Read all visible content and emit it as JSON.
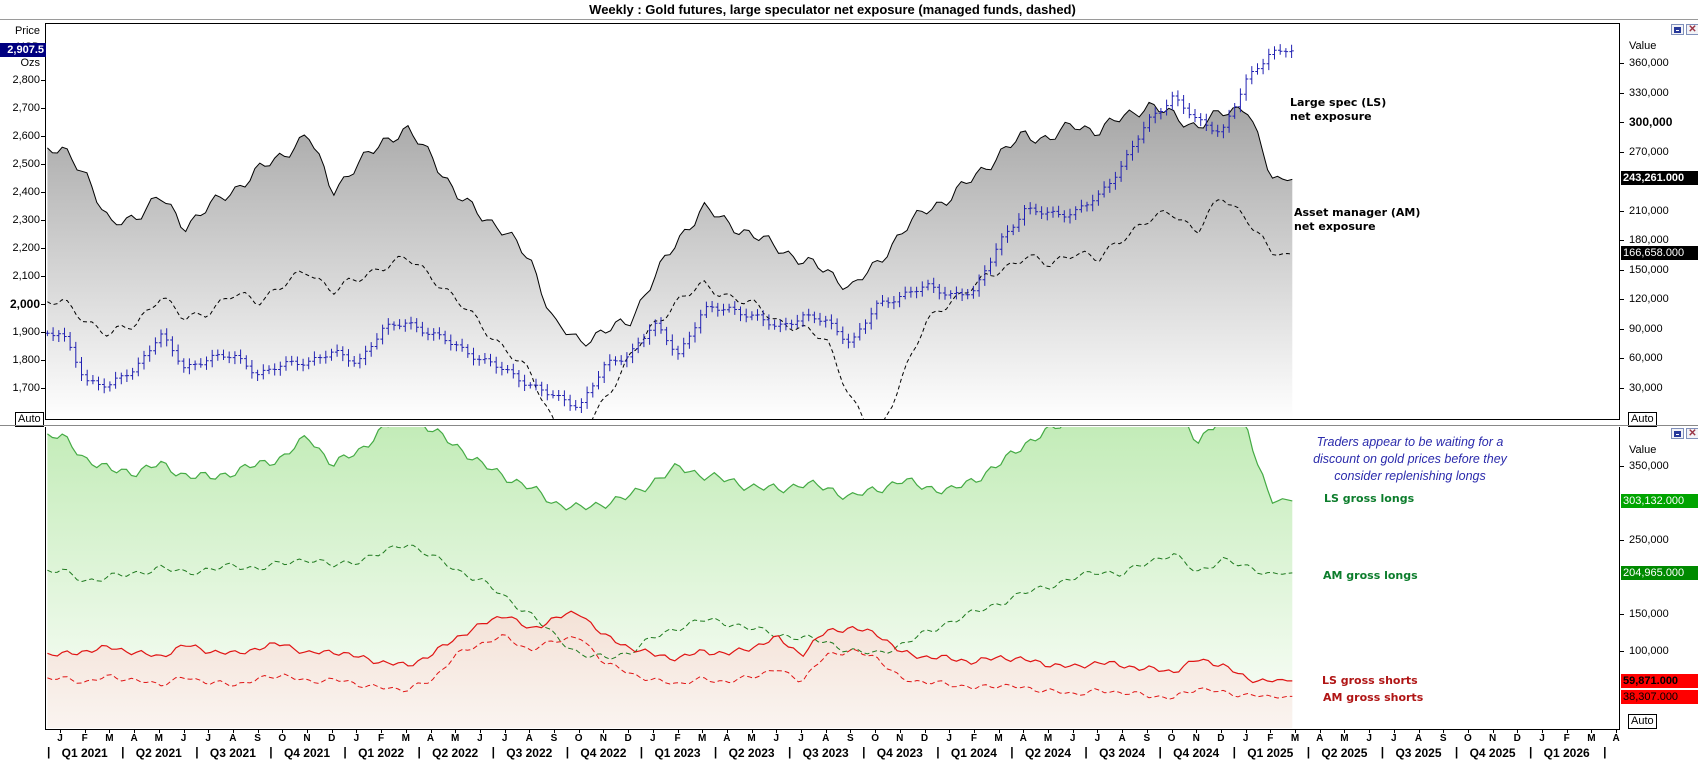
{
  "window": {
    "title": "Weekly : Gold futures, large speculator net exposure (managed funds, dashed)"
  },
  "top_panel": {
    "price_axis": {
      "header_lines": [
        "Price",
        "USD",
        "Ozs"
      ],
      "current_price_badge": "2,907.5",
      "ticks": [
        "2,800",
        "2,700",
        "2,600",
        "2,500",
        "2,400",
        "2,300",
        "2,200",
        "2,100",
        "2,000",
        "1,900",
        "1,800",
        "1,700"
      ],
      "bold_tick": "2,000",
      "auto_label": "Auto"
    },
    "value_axis": {
      "header": "Value",
      "ticks": [
        "360,000",
        "330,000",
        "300,000",
        "270,000",
        "210,000",
        "180,000",
        "150,000",
        "120,000",
        "90,000",
        "60,000",
        "30,000"
      ],
      "bold_tick": "300,000",
      "badges": [
        {
          "text": "243,261.000",
          "bg": "#000000",
          "fg": "#ffffff",
          "bold": true
        },
        {
          "text": "166,658.000",
          "bg": "#000000",
          "fg": "#ffffff",
          "bold": false
        }
      ],
      "auto_label": "Auto"
    },
    "annotations": [
      {
        "line1": "Large spec (LS)",
        "line2": "net exposure"
      },
      {
        "line1": "Asset manager (AM)",
        "line2": "net exposure"
      }
    ]
  },
  "bottom_panel": {
    "value_axis": {
      "header": "Value",
      "ticks": [
        "350,000",
        "250,000",
        "150,000",
        "100,000"
      ],
      "badges": [
        {
          "text": "303,132.000",
          "bg": "#00a400",
          "fg": "#ffffff",
          "bold": false
        },
        {
          "text": "204,965.000",
          "bg": "#008a00",
          "fg": "#ffffff",
          "bold": false
        },
        {
          "text": "59,871.000",
          "bg": "#ff0000",
          "fg": "#000000",
          "bold": true
        },
        {
          "text": "38,307.000",
          "bg": "#ff0000",
          "fg": "#000000",
          "bold": false
        }
      ],
      "auto_label": "Auto"
    },
    "annotations": {
      "blue_note_lines": [
        "Traders appear to be waiting for a",
        "discount on gold prices before they",
        "consider replenishing longs"
      ],
      "ls_longs_label": "LS gross longs",
      "am_longs_label": "AM gross longs",
      "ls_shorts_label": "LS gross shorts",
      "am_shorts_label": "AM gross shorts"
    }
  },
  "x_axis": {
    "month_letters": [
      "J",
      "F",
      "M",
      "A",
      "M",
      "J",
      "J",
      "A",
      "S",
      "O",
      "N",
      "D",
      "J",
      "F",
      "M",
      "A",
      "M",
      "J",
      "J",
      "A",
      "S",
      "O",
      "N",
      "D",
      "J",
      "F",
      "M",
      "A",
      "M",
      "J",
      "J",
      "A",
      "S",
      "O",
      "N",
      "D",
      "J",
      "F",
      "M",
      "A",
      "M",
      "J",
      "J",
      "A",
      "S",
      "O",
      "N",
      "D",
      "J",
      "F",
      "M",
      "A",
      "M",
      "J",
      "J",
      "A",
      "S",
      "O",
      "N",
      "D",
      "J",
      "F",
      "M",
      "A"
    ],
    "quarters": [
      "Q1 2021",
      "Q2 2021",
      "Q3 2021",
      "Q4 2021",
      "Q1 2022",
      "Q2 2022",
      "Q3 2022",
      "Q4 2022",
      "Q1 2023",
      "Q2 2023",
      "Q3 2023",
      "Q4 2023",
      "Q1 2024",
      "Q2 2024",
      "Q3 2024",
      "Q4 2024",
      "Q1 2025",
      "Q2 2025",
      "Q3 2025",
      "Q4 2025",
      "Q1 2026"
    ]
  },
  "chart_data": {
    "type": "mixed",
    "x": {
      "start": "Jan 2021",
      "data_end": "Feb 2025",
      "axis_end": "Apr 2026",
      "resolution": "weekly",
      "monthly_sampling": true
    },
    "panels": [
      {
        "name": "gold_price_and_net_exposure",
        "left_axis": {
          "label": "Price USD Ozs",
          "ticks": [
            2800,
            2700,
            2600,
            2500,
            2400,
            2300,
            2200,
            2100,
            2000,
            1900,
            1800,
            1700
          ],
          "last_price": 2907.5
        },
        "right_axis": {
          "label": "Value",
          "ticks": [
            360000,
            330000,
            300000,
            270000,
            210000,
            180000,
            150000,
            120000,
            90000,
            60000,
            30000
          ]
        },
        "series": [
          {
            "name": "Gold futures weekly price",
            "type": "ohlc",
            "color": "#2222b2",
            "unit": "USD/oz",
            "monthly_values": [
              1900,
              1730,
              1715,
              1770,
              1900,
              1770,
              1815,
              1815,
              1755,
              1785,
              1800,
              1830,
              1795,
              1910,
              1940,
              1895,
              1855,
              1805,
              1765,
              1715,
              1670,
              1640,
              1780,
              1825,
              1930,
              1825,
              1980,
              1990,
              1960,
              1920,
              1960,
              1940,
              1865,
              1995,
              2035,
              2065,
              2040,
              2045,
              2230,
              2335,
              2330,
              2325,
              2390,
              2505,
              2655,
              2745,
              2655,
              2620,
              2800,
              2907.5
            ],
            "last_value": 2907.5
          },
          {
            "name": "Large spec (LS) net exposure",
            "type": "area",
            "style": "solid",
            "color": "#000000",
            "fill": "gray-gradient",
            "unit": "contracts (thousands)",
            "monthly_values": [
              272,
              250,
              195,
              205,
              225,
              195,
              215,
              232,
              252,
              268,
              288,
              232,
              256,
              282,
              292,
              268,
              226,
              208,
              188,
              162,
              95,
              78,
              88,
              98,
              142,
              182,
              214,
              198,
              186,
              174,
              160,
              150,
              132,
              156,
              188,
              212,
              224,
              246,
              268,
              288,
              284,
              298,
              292,
              306,
              318,
              308,
              296,
              310,
              318,
              243.261
            ],
            "last_value": 243261
          },
          {
            "name": "Asset manager (AM) net exposure",
            "type": "line",
            "style": "dashed",
            "color": "#000000",
            "unit": "contracts (thousands)",
            "monthly_values": [
              118,
              100,
              85,
              95,
              125,
              100,
              110,
              125,
              120,
              135,
              150,
              130,
              140,
              155,
              162,
              145,
              120,
              95,
              70,
              45,
              -5,
              -20,
              20,
              60,
              95,
              120,
              135,
              125,
              115,
              100,
              90,
              80,
              20,
              -25,
              40,
              95,
              120,
              135,
              150,
              165,
              155,
              170,
              160,
              185,
              200,
              210,
              190,
              225,
              205,
              166.658
            ],
            "last_value": 166658
          }
        ]
      },
      {
        "name": "gross_positions",
        "right_axis": {
          "label": "Value",
          "ticks": [
            350000,
            250000,
            150000,
            100000
          ]
        },
        "series": [
          {
            "name": "LS gross longs",
            "type": "area",
            "style": "solid",
            "color": "#44aa44",
            "fill": "green-gradient",
            "unit": "contracts (thousands)",
            "monthly_values": [
              390,
              360,
              344,
              342,
              352,
              338,
              334,
              342,
              352,
              362,
              390,
              352,
              368,
              400,
              420,
              398,
              378,
              352,
              336,
              320,
              300,
              292,
              300,
              308,
              330,
              348,
              338,
              330,
              322,
              318,
              326,
              320,
              308,
              318,
              330,
              322,
              316,
              332,
              352,
              380,
              398,
              412,
              430,
              418,
              436,
              428,
              380,
              420,
              400,
              303.132
            ],
            "last_value": 303132
          },
          {
            "name": "AM gross longs",
            "type": "line",
            "style": "dashed",
            "color": "#1f7a1f",
            "unit": "contracts (thousands)",
            "monthly_values": [
              208,
              195,
              200,
              205,
              212,
              206,
              210,
              215,
              212,
              218,
              225,
              215,
              222,
              232,
              246,
              228,
              210,
              195,
              172,
              150,
              120,
              96,
              90,
              98,
              118,
              132,
              142,
              138,
              130,
              122,
              118,
              112,
              100,
              96,
              108,
              124,
              140,
              152,
              165,
              178,
              188,
              198,
              208,
              204,
              220,
              232,
              205,
              225,
              212,
              204.965
            ],
            "last_value": 204965
          },
          {
            "name": "LS gross shorts",
            "type": "area",
            "style": "solid",
            "color": "#e01414",
            "fill": "red-gradient",
            "unit": "contracts (thousands)",
            "monthly_values": [
              95,
              100,
              105,
              98,
              92,
              108,
              100,
              96,
              104,
              110,
              96,
              100,
              92,
              85,
              80,
              95,
              118,
              135,
              150,
              128,
              145,
              152,
              120,
              105,
              95,
              90,
              100,
              96,
              105,
              118,
              95,
              128,
              130,
              125,
              98,
              92,
              90,
              85,
              92,
              88,
              82,
              78,
              85,
              80,
              76,
              72,
              88,
              82,
              62,
              59.871
            ],
            "last_value": 59871
          },
          {
            "name": "AM gross shorts",
            "type": "line",
            "style": "dashed",
            "color": "#e01414",
            "unit": "contracts (thousands)",
            "monthly_values": [
              63,
              58,
              66,
              60,
              55,
              64,
              58,
              54,
              62,
              68,
              58,
              62,
              55,
              50,
              48,
              60,
              95,
              110,
              120,
              100,
              115,
              118,
              85,
              70,
              60,
              56,
              62,
              58,
              66,
              75,
              60,
              95,
              100,
              92,
              62,
              58,
              55,
              50,
              54,
              50,
              46,
              42,
              46,
              44,
              40,
              36,
              50,
              44,
              40,
              38.307
            ],
            "last_value": 38307
          }
        ]
      }
    ]
  }
}
